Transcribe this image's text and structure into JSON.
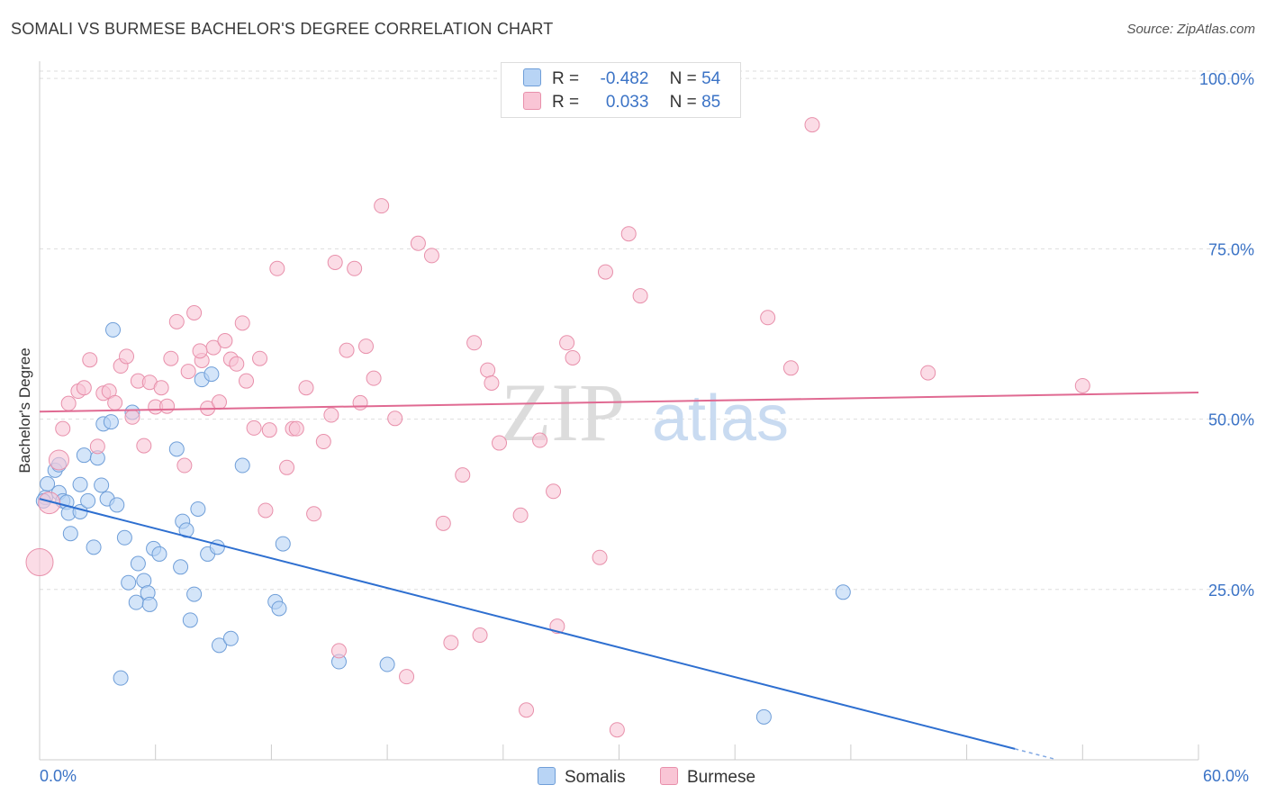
{
  "title": "SOMALI VS BURMESE BACHELOR'S DEGREE CORRELATION CHART",
  "source": "Source: ZipAtlas.com",
  "watermark": {
    "zip": "ZIP",
    "atlas": "atlas"
  },
  "legend_top": {
    "rows": [
      {
        "r_label": "R =",
        "r_value": "-0.482",
        "n_label": "N =",
        "n_value": "54"
      },
      {
        "r_label": "R =",
        "r_value": "0.033",
        "n_label": "N =",
        "n_value": "85"
      }
    ]
  },
  "legend_bottom": {
    "somalis": "Somalis",
    "burmese": "Burmese"
  },
  "colors": {
    "somalis_fill": "#b8d4f5",
    "somalis_stroke": "#6f9ed8",
    "somalis_line": "#2e6fd0",
    "burmese_fill": "#f9c5d5",
    "burmese_stroke": "#e890ab",
    "burmese_line": "#e06a92",
    "tick_label": "#3b73c6",
    "grid": "#dddddd"
  },
  "chart_data": {
    "type": "scatter",
    "title": "SOMALI VS BURMESE BACHELOR'S DEGREE CORRELATION CHART",
    "xlabel": "",
    "ylabel": "Bachelor's Degree",
    "xlim": [
      0,
      60
    ],
    "ylim": [
      0,
      102
    ],
    "x_tick_labels": {
      "min": "0.0%",
      "max": "60.0%"
    },
    "y_ticks": [
      {
        "value": 25,
        "label": "25.0%"
      },
      {
        "value": 50,
        "label": "50.0%"
      },
      {
        "value": 75,
        "label": "75.0%"
      },
      {
        "value": 100,
        "label": "100.0%"
      }
    ],
    "series": [
      {
        "name": "Somalis",
        "R": -0.482,
        "N": 54,
        "trend": {
          "x0": 0,
          "y0": 38.3,
          "x1": 50.5,
          "y1": 1.6,
          "dash_to_x": 52.5
        },
        "points": [
          [
            0.3,
            38.5
          ],
          [
            0.4,
            40.5
          ],
          [
            0.8,
            42.5
          ],
          [
            1.0,
            39.2
          ],
          [
            1.0,
            43.3
          ],
          [
            1.2,
            38.0
          ],
          [
            1.4,
            37.8
          ],
          [
            1.5,
            36.2
          ],
          [
            1.6,
            33.2
          ],
          [
            2.1,
            36.4
          ],
          [
            2.1,
            40.4
          ],
          [
            2.3,
            44.7
          ],
          [
            2.5,
            38.0
          ],
          [
            2.8,
            31.2
          ],
          [
            3.0,
            44.3
          ],
          [
            3.2,
            40.3
          ],
          [
            3.3,
            49.3
          ],
          [
            3.5,
            38.3
          ],
          [
            3.7,
            49.6
          ],
          [
            3.8,
            63.1
          ],
          [
            4.0,
            37.4
          ],
          [
            4.2,
            12.0
          ],
          [
            4.4,
            32.6
          ],
          [
            4.6,
            26.0
          ],
          [
            4.8,
            51.0
          ],
          [
            5.0,
            23.1
          ],
          [
            5.1,
            28.8
          ],
          [
            5.4,
            26.3
          ],
          [
            5.6,
            24.5
          ],
          [
            5.7,
            22.8
          ],
          [
            5.9,
            31.0
          ],
          [
            6.2,
            30.2
          ],
          [
            7.1,
            45.6
          ],
          [
            7.3,
            28.3
          ],
          [
            7.4,
            35.0
          ],
          [
            7.6,
            33.7
          ],
          [
            7.8,
            20.5
          ],
          [
            8.0,
            24.3
          ],
          [
            8.2,
            36.8
          ],
          [
            8.4,
            55.8
          ],
          [
            8.7,
            30.2
          ],
          [
            8.9,
            56.6
          ],
          [
            9.2,
            31.2
          ],
          [
            9.3,
            16.8
          ],
          [
            9.9,
            17.8
          ],
          [
            10.5,
            43.2
          ],
          [
            12.2,
            23.2
          ],
          [
            12.4,
            22.2
          ],
          [
            12.6,
            31.7
          ],
          [
            15.5,
            14.4
          ],
          [
            18.0,
            14.0
          ],
          [
            37.5,
            6.3
          ],
          [
            41.6,
            24.6
          ],
          [
            0.2,
            38.0
          ]
        ]
      },
      {
        "name": "Burmese",
        "R": 0.033,
        "N": 85,
        "trend": {
          "x0": 0,
          "y0": 51.1,
          "x1": 60,
          "y1": 53.9
        },
        "points": [
          [
            0.0,
            29.0
          ],
          [
            0.5,
            37.7
          ],
          [
            1.0,
            44.0
          ],
          [
            1.2,
            48.6
          ],
          [
            1.5,
            52.3
          ],
          [
            2.0,
            54.1
          ],
          [
            2.3,
            54.6
          ],
          [
            2.6,
            58.7
          ],
          [
            3.0,
            46.0
          ],
          [
            3.3,
            53.8
          ],
          [
            3.6,
            54.1
          ],
          [
            3.9,
            52.4
          ],
          [
            4.2,
            57.8
          ],
          [
            4.5,
            59.2
          ],
          [
            4.8,
            50.3
          ],
          [
            5.1,
            55.6
          ],
          [
            5.4,
            46.1
          ],
          [
            5.7,
            55.4
          ],
          [
            6.0,
            51.8
          ],
          [
            6.3,
            54.6
          ],
          [
            6.8,
            58.9
          ],
          [
            7.1,
            64.3
          ],
          [
            7.5,
            43.2
          ],
          [
            7.7,
            57.0
          ],
          [
            8.0,
            65.6
          ],
          [
            8.4,
            58.6
          ],
          [
            8.7,
            51.6
          ],
          [
            9.0,
            60.5
          ],
          [
            9.3,
            52.5
          ],
          [
            9.6,
            61.5
          ],
          [
            9.9,
            58.8
          ],
          [
            10.2,
            58.1
          ],
          [
            10.5,
            64.1
          ],
          [
            10.7,
            55.6
          ],
          [
            11.1,
            48.7
          ],
          [
            11.4,
            58.9
          ],
          [
            11.7,
            36.6
          ],
          [
            11.9,
            48.4
          ],
          [
            12.3,
            72.1
          ],
          [
            12.8,
            42.9
          ],
          [
            13.1,
            48.6
          ],
          [
            13.3,
            48.6
          ],
          [
            13.8,
            54.6
          ],
          [
            14.2,
            36.1
          ],
          [
            14.7,
            46.7
          ],
          [
            15.1,
            50.6
          ],
          [
            15.3,
            73.0
          ],
          [
            15.5,
            16.0
          ],
          [
            15.9,
            60.1
          ],
          [
            16.3,
            72.1
          ],
          [
            16.6,
            52.4
          ],
          [
            16.9,
            60.7
          ],
          [
            17.3,
            56.0
          ],
          [
            17.7,
            81.3
          ],
          [
            18.4,
            50.1
          ],
          [
            19.0,
            12.2
          ],
          [
            19.6,
            75.8
          ],
          [
            20.3,
            74.0
          ],
          [
            20.9,
            34.7
          ],
          [
            21.3,
            17.2
          ],
          [
            21.9,
            41.8
          ],
          [
            22.5,
            61.2
          ],
          [
            22.8,
            18.3
          ],
          [
            23.2,
            57.2
          ],
          [
            23.4,
            55.3
          ],
          [
            23.8,
            46.5
          ],
          [
            24.9,
            35.9
          ],
          [
            25.2,
            7.3
          ],
          [
            25.9,
            46.9
          ],
          [
            26.6,
            39.4
          ],
          [
            26.8,
            19.6
          ],
          [
            27.3,
            61.2
          ],
          [
            27.6,
            59.0
          ],
          [
            29.0,
            29.7
          ],
          [
            29.3,
            71.6
          ],
          [
            29.9,
            4.4
          ],
          [
            30.5,
            77.2
          ],
          [
            31.1,
            68.1
          ],
          [
            37.7,
            64.9
          ],
          [
            38.9,
            57.5
          ],
          [
            40.0,
            93.2
          ],
          [
            46.0,
            56.8
          ],
          [
            54.0,
            54.9
          ],
          [
            8.3,
            60.0
          ],
          [
            6.6,
            51.9
          ]
        ]
      }
    ]
  }
}
